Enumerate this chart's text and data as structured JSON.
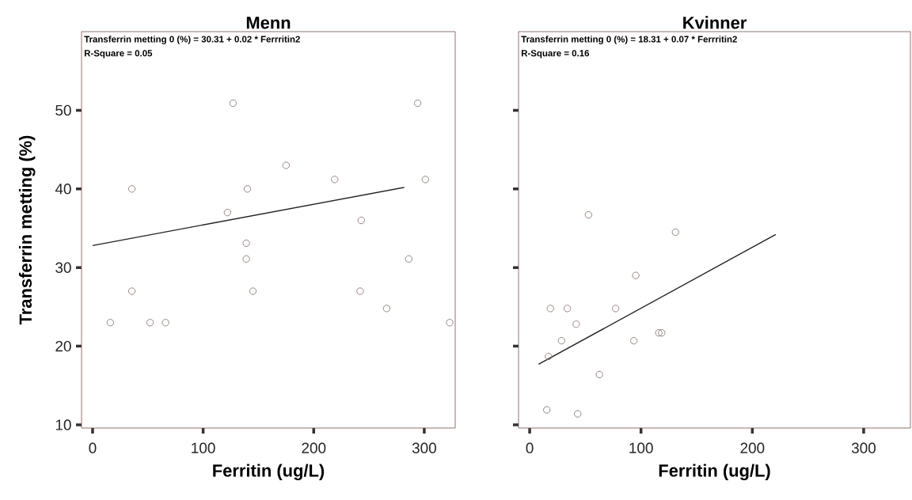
{
  "chart_data": [
    {
      "type": "scatter",
      "title": "Menn",
      "xlabel": "Ferritin (ug/L)",
      "ylabel": "Transferrin metting (%)",
      "annotations": [
        "Transferrin metting 0 (%) = 30.31 + 0.02 * Ferrritin2",
        "R-Square = 0.05"
      ],
      "xlim": [
        -10,
        328
      ],
      "ylim": [
        9.6,
        60
      ],
      "xticks": [
        0,
        100,
        200,
        300
      ],
      "yticks": [
        10,
        20,
        30,
        40,
        50
      ],
      "series": [
        {
          "marker": "circle",
          "color": "#8c7b78",
          "x": [
            127,
            294,
            175,
            219,
            301,
            35.5,
            140,
            122,
            243,
            139,
            139,
            286,
            35.5,
            145,
            242,
            266,
            16,
            52,
            66,
            323
          ],
          "values": [
            50.9,
            50.9,
            43.0,
            41.2,
            41.2,
            40.0,
            40.0,
            37.0,
            36.0,
            33.1,
            31.1,
            31.1,
            27.0,
            27.0,
            27.0,
            24.8,
            23.0,
            23.0,
            23.0,
            23.0
          ]
        },
        {
          "type": "line",
          "color": "#222222",
          "x": [
            0,
            282
          ],
          "values": [
            32.8,
            40.2
          ]
        }
      ]
    },
    {
      "type": "scatter",
      "title": "Kvinner",
      "xlabel": "Ferritin (ug/L)",
      "annotations": [
        "Transferrin metting 0 (%) = 18.31 + 0.07 * Ferrritin2",
        "R-Square = 0.16"
      ],
      "xlim": [
        -10,
        342
      ],
      "ylim": [
        9.6,
        60
      ],
      "xticks": [
        0,
        100,
        200,
        300
      ],
      "yticks": [
        10,
        20,
        30,
        40,
        50
      ],
      "tick_labels": "x",
      "series": [
        {
          "marker": "circle",
          "color": "#8c7b78",
          "x": [
            52.8,
            131,
            95.3,
            18.6,
            33.8,
            77.2,
            41.8,
            28.6,
            93.6,
            116,
            118.6,
            16.9,
            62.6,
            15.4,
            43.1
          ],
          "values": [
            36.7,
            34.5,
            29.0,
            24.8,
            24.8,
            24.8,
            22.8,
            20.7,
            20.7,
            21.7,
            21.7,
            18.7,
            16.4,
            11.9,
            11.4
          ]
        },
        {
          "type": "line",
          "color": "#222222",
          "x": [
            8,
            221
          ],
          "values": [
            17.7,
            34.2
          ]
        }
      ]
    }
  ]
}
